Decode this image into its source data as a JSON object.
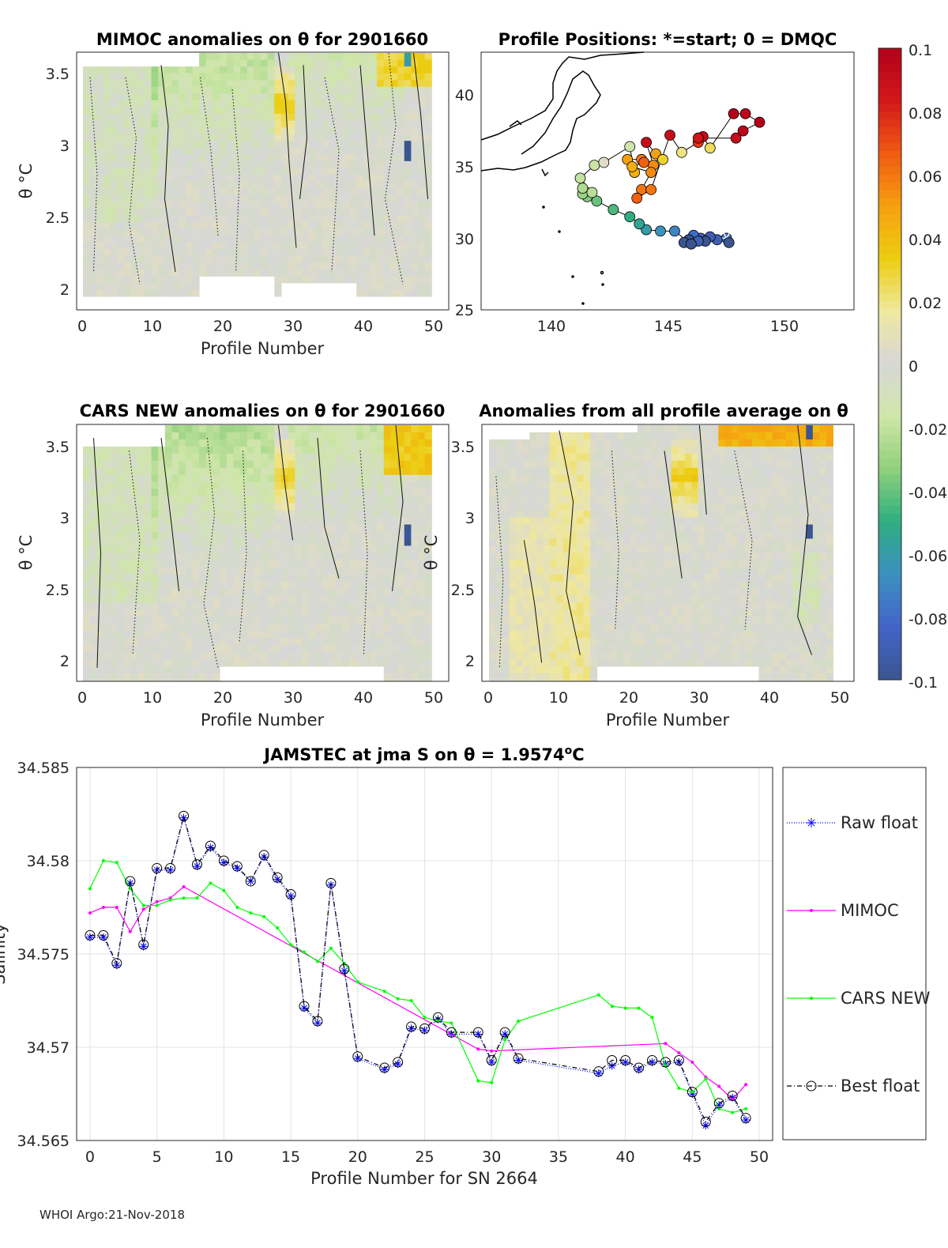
{
  "footer": "WHOI Argo:21-Nov-2018",
  "colorbar": {
    "ticks": [
      "0.1",
      "0.08",
      "0.06",
      "0.04",
      "0.02",
      "0",
      "-0.02",
      "-0.04",
      "-0.06",
      "-0.08",
      "-0.1"
    ],
    "colors": [
      "#b2001a",
      "#d2181a",
      "#f05a10",
      "#f6a010",
      "#eccd10",
      "#efe8a0",
      "#d7d7d7",
      "#cfe6a8",
      "#8fd07a",
      "#2eae80",
      "#3c8fc0",
      "#4364c8",
      "#3a5590"
    ]
  },
  "panels": {
    "mimoc": {
      "title": "MIMOC anomalies on θ  for 2901660",
      "ylabel": "θ °C",
      "xlabel": "Profile Number",
      "xticks": [
        "0",
        "10",
        "20",
        "30",
        "40",
        "50"
      ],
      "yticks": [
        "3.5",
        "3",
        "2.5",
        "2"
      ]
    },
    "map": {
      "title": "Profile Positions: *=start; 0 = DMQC",
      "xticks": [
        "140",
        "145",
        "150"
      ],
      "yticks": [
        "40",
        "35",
        "30",
        "25"
      ]
    },
    "cars": {
      "title": "CARS NEW anomalies on θ for 2901660",
      "ylabel": "θ °C",
      "xlabel": "Profile Number",
      "xticks": [
        "0",
        "10",
        "20",
        "30",
        "40",
        "50"
      ],
      "yticks": [
        "3.5",
        "3",
        "2.5",
        "2"
      ]
    },
    "avg": {
      "title": "Anomalies from all profile average on θ",
      "ylabel": "θ °C",
      "xlabel": "Profile Number",
      "xticks": [
        "0",
        "10",
        "20",
        "30",
        "40",
        "50"
      ],
      "yticks": [
        "3.5",
        "3",
        "2.5",
        "2"
      ]
    }
  },
  "chart_data": {
    "type": "line",
    "title": "JAMSTEC at jma S on θ = 1.9574",
    "title_sup": "o",
    "title_unit": "C",
    "xlabel": "Profile Number for SN 2664",
    "ylabel": "Salinity",
    "xlim": [
      -1,
      51
    ],
    "ylim": [
      34.565,
      34.585
    ],
    "xticks": [
      0,
      5,
      10,
      15,
      20,
      25,
      30,
      35,
      40,
      45,
      50
    ],
    "yticks": [
      "34.565",
      "34.57",
      "34.575",
      "34.58",
      "34.585"
    ],
    "grid": true,
    "legend_position": "right",
    "series": [
      {
        "name": "Raw float",
        "color": "#0000ff",
        "style": "dotted",
        "marker": "star",
        "x": [
          0,
          1,
          2,
          3,
          4,
          5,
          6,
          7,
          8,
          9,
          10,
          11,
          12,
          13,
          14,
          15,
          16,
          17,
          18,
          19,
          20,
          22,
          23,
          24,
          25,
          26,
          27,
          29,
          30,
          31,
          32,
          38,
          39,
          40,
          41,
          42,
          43,
          44,
          45,
          46,
          47,
          48,
          49
        ],
        "y": [
          34.5759,
          34.5759,
          34.5744,
          34.5788,
          34.5754,
          34.5795,
          34.5795,
          34.5823,
          34.5797,
          34.5807,
          34.5799,
          34.5796,
          34.5789,
          34.5802,
          34.579,
          34.5781,
          34.5721,
          34.5713,
          34.5787,
          34.5741,
          34.5694,
          34.5688,
          34.5691,
          34.571,
          34.5709,
          34.5715,
          34.5707,
          34.5707,
          34.5692,
          34.5707,
          34.5693,
          34.5686,
          34.569,
          34.5692,
          34.5688,
          34.5692,
          34.5691,
          34.5692,
          34.5675,
          34.5658,
          34.5669,
          34.5673,
          34.5661
        ]
      },
      {
        "name": "MIMOC",
        "color": "#ff00ff",
        "style": "solid",
        "marker": "dot",
        "x": [
          0,
          1,
          2,
          3,
          4,
          5,
          6,
          7,
          29,
          30,
          43,
          44,
          45,
          46,
          47,
          48,
          49
        ],
        "y": [
          34.5772,
          34.5775,
          34.5775,
          34.5762,
          34.5774,
          34.5778,
          34.578,
          34.5786,
          34.5699,
          34.5698,
          34.5702,
          34.5697,
          34.5692,
          34.5684,
          34.5679,
          34.5672,
          34.568
        ]
      },
      {
        "name": "CARS NEW",
        "color": "#00ff00",
        "style": "solid",
        "marker": "dot",
        "x": [
          0,
          1,
          2,
          3,
          4,
          5,
          6,
          7,
          8,
          9,
          10,
          11,
          12,
          13,
          14,
          15,
          16,
          17,
          18,
          19,
          20,
          22,
          23,
          24,
          25,
          26,
          27,
          29,
          30,
          31,
          32,
          38,
          39,
          40,
          41,
          42,
          43,
          44,
          45,
          46,
          47,
          48,
          49
        ],
        "y": [
          34.5785,
          34.58,
          34.5799,
          34.5785,
          34.5776,
          34.5776,
          34.5779,
          34.578,
          34.578,
          34.5788,
          34.5784,
          34.5775,
          34.5772,
          34.577,
          34.5764,
          34.5755,
          34.5751,
          34.5746,
          34.5753,
          34.5745,
          34.5735,
          34.573,
          34.5726,
          34.5725,
          34.5716,
          34.5714,
          34.5713,
          34.5682,
          34.5681,
          34.5704,
          34.5714,
          34.5728,
          34.5722,
          34.5721,
          34.5721,
          34.5716,
          34.569,
          34.5678,
          34.5676,
          34.5683,
          34.5667,
          34.5665,
          34.5667
        ]
      },
      {
        "name": "Best float",
        "color": "#000000",
        "style": "dashdot",
        "marker": "circle",
        "x": [
          0,
          1,
          2,
          3,
          4,
          5,
          6,
          7,
          8,
          9,
          10,
          11,
          12,
          13,
          14,
          15,
          16,
          17,
          18,
          19,
          20,
          22,
          23,
          24,
          25,
          26,
          27,
          29,
          30,
          31,
          32,
          38,
          39,
          40,
          41,
          42,
          43,
          44,
          45,
          46,
          47,
          48,
          49
        ],
        "y": [
          34.576,
          34.576,
          34.5745,
          34.5789,
          34.5755,
          34.5796,
          34.5796,
          34.5824,
          34.5798,
          34.5808,
          34.58,
          34.5797,
          34.5789,
          34.5803,
          34.5791,
          34.5782,
          34.5722,
          34.5714,
          34.5788,
          34.5742,
          34.5695,
          34.5689,
          34.5692,
          34.5711,
          34.571,
          34.5716,
          34.5708,
          34.5708,
          34.5693,
          34.5708,
          34.5694,
          34.5687,
          34.5693,
          34.5693,
          34.5689,
          34.5693,
          34.5692,
          34.5693,
          34.5676,
          34.566,
          34.567,
          34.5674,
          34.5662
        ]
      }
    ]
  },
  "map_data": {
    "xlim": [
      137,
      152.8
    ],
    "ylim": [
      25,
      43
    ],
    "positions": [
      {
        "lon": 147.4,
        "lat": 30.0,
        "v": -0.08,
        "start": true
      },
      {
        "lon": 147.5,
        "lat": 29.7,
        "v": -0.1
      },
      {
        "lon": 147.0,
        "lat": 29.9,
        "v": -0.09
      },
      {
        "lon": 146.7,
        "lat": 30.1,
        "v": -0.09
      },
      {
        "lon": 146.3,
        "lat": 30.0,
        "v": -0.09
      },
      {
        "lon": 146.5,
        "lat": 29.8,
        "v": -0.1
      },
      {
        "lon": 146.0,
        "lat": 30.2,
        "v": -0.08
      },
      {
        "lon": 145.8,
        "lat": 29.9,
        "v": -0.1
      },
      {
        "lon": 145.6,
        "lat": 29.7,
        "v": -0.1
      },
      {
        "lon": 146.2,
        "lat": 29.8,
        "v": -0.09
      },
      {
        "lon": 145.9,
        "lat": 29.6,
        "v": -0.1
      },
      {
        "lon": 145.2,
        "lat": 30.5,
        "v": -0.07
      },
      {
        "lon": 144.6,
        "lat": 30.5,
        "v": -0.065
      },
      {
        "lon": 144.0,
        "lat": 30.6,
        "v": -0.06
      },
      {
        "lon": 143.7,
        "lat": 31.0,
        "v": -0.055
      },
      {
        "lon": 143.3,
        "lat": 31.5,
        "v": -0.05
      },
      {
        "lon": 142.6,
        "lat": 32.0,
        "v": -0.045
      },
      {
        "lon": 141.9,
        "lat": 32.6,
        "v": -0.04
      },
      {
        "lon": 141.5,
        "lat": 32.9,
        "v": -0.035
      },
      {
        "lon": 141.3,
        "lat": 33.1,
        "v": -0.03
      },
      {
        "lon": 141.3,
        "lat": 33.5,
        "v": -0.025
      },
      {
        "lon": 141.7,
        "lat": 33.2,
        "v": -0.022
      },
      {
        "lon": 141.2,
        "lat": 34.2,
        "v": -0.02
      },
      {
        "lon": 141.8,
        "lat": 35.1,
        "v": -0.018
      },
      {
        "lon": 142.2,
        "lat": 35.3,
        "v": 0.005
      },
      {
        "lon": 143.3,
        "lat": 36.4,
        "v": -0.015
      },
      {
        "lon": 143.5,
        "lat": 34.6,
        "v": 0.045
      },
      {
        "lon": 143.2,
        "lat": 35.5,
        "v": 0.05
      },
      {
        "lon": 143.8,
        "lat": 35.5,
        "v": 0.06
      },
      {
        "lon": 144.3,
        "lat": 35.1,
        "v": 0.055
      },
      {
        "lon": 144.0,
        "lat": 36.7,
        "v": 0.09
      },
      {
        "lon": 144.4,
        "lat": 35.9,
        "v": 0.05
      },
      {
        "lon": 144.7,
        "lat": 35.5,
        "v": 0.03
      },
      {
        "lon": 143.9,
        "lat": 35.3,
        "v": 0.065
      },
      {
        "lon": 143.4,
        "lat": 35.0,
        "v": 0.045
      },
      {
        "lon": 144.2,
        "lat": 34.6,
        "v": 0.055
      },
      {
        "lon": 143.8,
        "lat": 33.4,
        "v": 0.06
      },
      {
        "lon": 143.6,
        "lat": 32.8,
        "v": 0.065
      },
      {
        "lon": 144.2,
        "lat": 33.4,
        "v": 0.06
      },
      {
        "lon": 145.0,
        "lat": 37.2,
        "v": 0.09
      },
      {
        "lon": 145.5,
        "lat": 36.0,
        "v": 0.02
      },
      {
        "lon": 146.2,
        "lat": 36.7,
        "v": 0.075
      },
      {
        "lon": 146.4,
        "lat": 37.1,
        "v": 0.09
      },
      {
        "lon": 146.7,
        "lat": 36.3,
        "v": 0.025
      },
      {
        "lon": 147.7,
        "lat": 38.7,
        "v": 0.1
      },
      {
        "lon": 148.2,
        "lat": 38.7,
        "v": 0.095
      },
      {
        "lon": 148.8,
        "lat": 38.1,
        "v": 0.1
      },
      {
        "lon": 148.1,
        "lat": 37.5,
        "v": 0.095
      },
      {
        "lon": 147.8,
        "lat": 37.0,
        "v": 0.09
      },
      {
        "lon": 146.2,
        "lat": 37.0,
        "v": 0.085
      }
    ]
  }
}
